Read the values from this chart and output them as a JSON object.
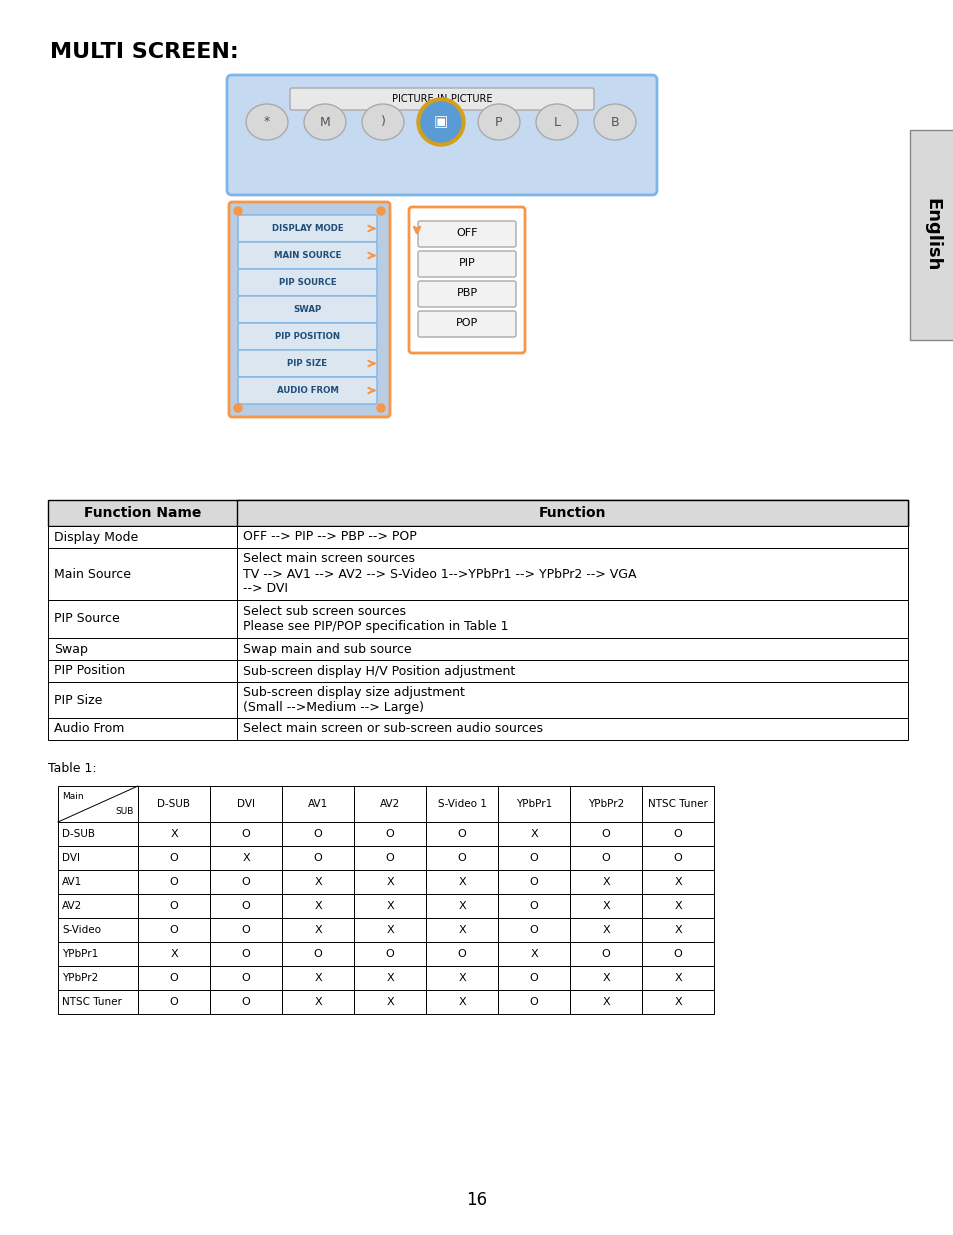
{
  "title": "MULTI SCREEN:",
  "page_number": "16",
  "menu_items": [
    "DISPLAY MODE",
    "MAIN SOURCE",
    "PIP SOURCE",
    "SWAP",
    "PIP POSITION",
    "PIP SIZE",
    "AUDIO FROM"
  ],
  "submenu_items": [
    "OFF",
    "PIP",
    "PBP",
    "POP"
  ],
  "pip_label": "PICTURE-IN-PICTURE",
  "func_table_headers": [
    "Function Name",
    "Function"
  ],
  "func_table_rows": [
    [
      "Display Mode",
      "OFF --> PIP --> PBP --> POP"
    ],
    [
      "Main Source",
      "Select main screen sources\nTV --> AV1 --> AV2 --> S-Video 1-->YPbPr1 --> YPbPr2 --> VGA\n--> DVI"
    ],
    [
      "PIP Source",
      "Select sub screen sources\nPlease see PIP/POP specification in Table 1"
    ],
    [
      "Swap",
      "Swap main and sub source"
    ],
    [
      "PIP Position",
      "Sub-screen display H/V Position adjustment"
    ],
    [
      "PIP Size",
      "Sub-screen display size adjustment\n(Small -->Medium --> Large)"
    ],
    [
      "Audio From",
      "Select main screen or sub-screen audio sources"
    ]
  ],
  "table1_label": "Table 1:",
  "table1_col_headers": [
    "D-SUB",
    "DVI",
    "AV1",
    "AV2",
    "S-Video 1",
    "YPbPr1",
    "YPbPr2",
    "NTSC Tuner"
  ],
  "table1_row_headers": [
    "D-SUB",
    "DVI",
    "AV1",
    "AV2",
    "S-Video",
    "YPbPr1",
    "YPbPr2",
    "NTSC Tuner"
  ],
  "table1_data": [
    [
      "X",
      "O",
      "O",
      "O",
      "O",
      "X",
      "O",
      "O"
    ],
    [
      "O",
      "X",
      "O",
      "O",
      "O",
      "O",
      "O",
      "O"
    ],
    [
      "O",
      "O",
      "X",
      "X",
      "X",
      "O",
      "X",
      "X"
    ],
    [
      "O",
      "O",
      "X",
      "X",
      "X",
      "O",
      "X",
      "X"
    ],
    [
      "O",
      "O",
      "X",
      "X",
      "X",
      "O",
      "X",
      "X"
    ],
    [
      "X",
      "O",
      "O",
      "O",
      "O",
      "X",
      "O",
      "O"
    ],
    [
      "O",
      "O",
      "X",
      "X",
      "X",
      "O",
      "X",
      "X"
    ],
    [
      "O",
      "O",
      "X",
      "X",
      "X",
      "O",
      "X",
      "X"
    ]
  ],
  "bg_color": "#ffffff",
  "menu_bg": "#b8cce4",
  "menu_item_bg": "#dce6f1",
  "menu_border": "#f79646",
  "submenu_bg": "#ffffff",
  "submenu_border": "#f79646",
  "menu_text_color": "#1f4e79",
  "pip_bg": "#c5d9f1",
  "pip_border": "#7eb5e8",
  "header_bg": "#d9d9d9",
  "sidebar_bg": "#d9d9d9",
  "sidebar_text": "English"
}
